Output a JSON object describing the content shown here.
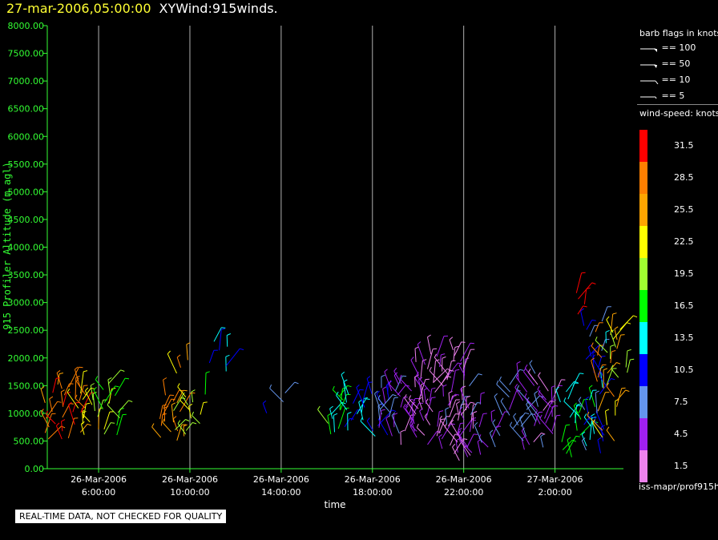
{
  "header": {
    "date": "27-mar-2006,05:00:00",
    "name": "XYWind:915winds."
  },
  "legend": {
    "flags_title": "barb flags in knots",
    "flags": [
      {
        "label": "== 100"
      },
      {
        "label": "== 50"
      },
      {
        "label": "== 10"
      },
      {
        "label": "== 5"
      }
    ],
    "speed_title": "wind-speed: knots",
    "colorbar": [
      {
        "label": "31.5",
        "color": "#ff0000"
      },
      {
        "label": "28.5",
        "color": "#ff7f00"
      },
      {
        "label": "25.5",
        "color": "#ffa500"
      },
      {
        "label": "22.5",
        "color": "#ffff00"
      },
      {
        "label": "19.5",
        "color": "#a0ff30"
      },
      {
        "label": "16.5",
        "color": "#00ff00"
      },
      {
        "label": "13.5",
        "color": "#00ffff"
      },
      {
        "label": "10.5",
        "color": "#0000ff"
      },
      {
        "label": "7.5",
        "color": "#6495ed"
      },
      {
        "label": "4.5",
        "color": "#a020f0"
      },
      {
        "label": "1.5",
        "color": "#ee82ee"
      }
    ]
  },
  "source_label": "iss-mapr/prof915h",
  "disclaimer": "REAL-TIME DATA, NOT CHECKED FOR QUALITY",
  "chart_data": {
    "type": "scatter",
    "title": "27-mar-2006,05:00:00  XYWind:915winds.",
    "xlabel": "time",
    "ylabel": "915 Profiler Altitude (m agl)",
    "ylim": [
      0,
      8000
    ],
    "y_ticks": [
      "0.00",
      "500.00",
      "1000.00",
      "1500.00",
      "2000.00",
      "2500.00",
      "3000.00",
      "3500.00",
      "4000.00",
      "4500.00",
      "5000.00",
      "5500.00",
      "6000.00",
      "6500.00",
      "7000.00",
      "7500.00",
      "8000.00"
    ],
    "xlim": [
      "2006-03-26 03:45",
      "2006-03-27 05:00"
    ],
    "x_ticks": [
      {
        "t": "2006-03-26 06:00",
        "line1": "26-Mar-2006",
        "line2": "6:00:00"
      },
      {
        "t": "2006-03-26 10:00",
        "line1": "26-Mar-2006",
        "line2": "10:00:00"
      },
      {
        "t": "2006-03-26 14:00",
        "line1": "26-Mar-2006",
        "line2": "14:00:00"
      },
      {
        "t": "2006-03-26 18:00",
        "line1": "26-Mar-2006",
        "line2": "18:00:00"
      },
      {
        "t": "2006-03-26 22:00",
        "line1": "26-Mar-2006",
        "line2": "22:00:00"
      },
      {
        "t": "2006-03-27 02:00",
        "line1": "27-Mar-2006",
        "line2": "2:00:00"
      }
    ],
    "grid": "vertical lines at x ticks",
    "series": [
      {
        "x": "2006-03-26 04:00",
        "y_range": [
          550,
          1550
        ],
        "speed": 28
      },
      {
        "x": "2006-03-26 04:30",
        "y_range": [
          550,
          1500
        ],
        "speed": 30
      },
      {
        "x": "2006-03-26 05:00",
        "y_range": [
          550,
          1450
        ],
        "speed": 29
      },
      {
        "x": "2006-03-26 05:30",
        "y_range": [
          600,
          1400
        ],
        "speed": 24
      },
      {
        "x": "2006-03-26 06:00",
        "y_range": [
          600,
          1500
        ],
        "speed": 21
      },
      {
        "x": "2006-03-26 06:30",
        "y_range": [
          650,
          1450
        ],
        "speed": 17
      },
      {
        "x": "2006-03-26 08:45",
        "y_range": [
          550,
          1300
        ],
        "speed": 27
      },
      {
        "x": "2006-03-26 09:15",
        "y_range": [
          550,
          1200
        ],
        "speed": 26
      },
      {
        "x": "2006-03-26 09:45",
        "y_range": [
          600,
          1300
        ],
        "speed": 22
      },
      {
        "x": "2006-03-26 10:15",
        "y_range": [
          600,
          1300
        ],
        "speed": 20
      },
      {
        "x": "2006-03-26 09:45",
        "y_range": [
          1750,
          1950
        ],
        "speed": 26
      },
      {
        "x": "2006-03-26 11:15",
        "y_range": [
          2150,
          2300
        ],
        "speed": 14
      },
      {
        "x": "2006-03-26 11:15",
        "y_range": [
          1750,
          1950
        ],
        "speed": 10
      },
      {
        "x": "2006-03-26 13:45",
        "y_range": [
          1000,
          1350
        ],
        "speed": 9
      },
      {
        "x": "2006-03-26 16:15",
        "y_range": [
          600,
          1200
        ],
        "speed": 17
      },
      {
        "x": "2006-03-26 16:45",
        "y_range": [
          650,
          1300
        ],
        "speed": 14
      },
      {
        "x": "2006-03-26 17:15",
        "y_range": [
          700,
          1350
        ],
        "speed": 12
      },
      {
        "x": "2006-03-26 17:45",
        "y_range": [
          600,
          1350
        ],
        "speed": 12
      },
      {
        "x": "2006-03-26 18:15",
        "y_range": [
          650,
          1500
        ],
        "speed": 9
      },
      {
        "x": "2006-03-26 18:45",
        "y_range": [
          650,
          1550
        ],
        "speed": 6
      },
      {
        "x": "2006-03-26 19:15",
        "y_range": [
          550,
          1500
        ],
        "speed": 4
      },
      {
        "x": "2006-03-26 19:45",
        "y_range": [
          450,
          1600
        ],
        "speed": 4
      },
      {
        "x": "2006-03-26 20:15",
        "y_range": [
          450,
          1900
        ],
        "speed": 3
      },
      {
        "x": "2006-03-26 20:45",
        "y_range": [
          400,
          2100
        ],
        "speed": 3
      },
      {
        "x": "2006-03-26 21:15",
        "y_range": [
          300,
          2150
        ],
        "speed": 2
      },
      {
        "x": "2006-03-26 21:45",
        "y_range": [
          200,
          1900
        ],
        "speed": 4
      },
      {
        "x": "2006-03-26 22:15",
        "y_range": [
          150,
          1200
        ],
        "speed": 3
      },
      {
        "x": "2006-03-26 22:45",
        "y_range": [
          200,
          1100
        ],
        "speed": 4
      },
      {
        "x": "2006-03-26 23:15",
        "y_range": [
          350,
          1000
        ],
        "speed": 6
      },
      {
        "x": "2006-03-27 00:30",
        "y_range": [
          700,
          1600
        ],
        "speed": 6
      },
      {
        "x": "2006-03-27 01:00",
        "y_range": [
          300,
          1700
        ],
        "speed": 5
      },
      {
        "x": "2006-03-27 01:30",
        "y_range": [
          400,
          1400
        ],
        "speed": 4
      },
      {
        "x": "2006-03-27 01:45",
        "y_range": [
          700,
          1500
        ],
        "speed": 3
      },
      {
        "x": "2006-03-27 02:45",
        "y_range": [
          250,
          1500
        ],
        "speed": 15
      },
      {
        "x": "2006-03-27 03:15",
        "y_range": [
          250,
          1100
        ],
        "speed": 14
      },
      {
        "x": "2006-03-27 03:45",
        "y_range": [
          250,
          2700
        ],
        "speed": 10
      },
      {
        "x": "2006-03-27 04:15",
        "y_range": [
          500,
          2500
        ],
        "speed": 26
      },
      {
        "x": "2006-03-27 04:45",
        "y_range": [
          1500,
          2550
        ],
        "speed": 21
      },
      {
        "x": "2006-03-27 03:15",
        "y_range": [
          2800,
          3200
        ],
        "speed": 31
      }
    ]
  }
}
